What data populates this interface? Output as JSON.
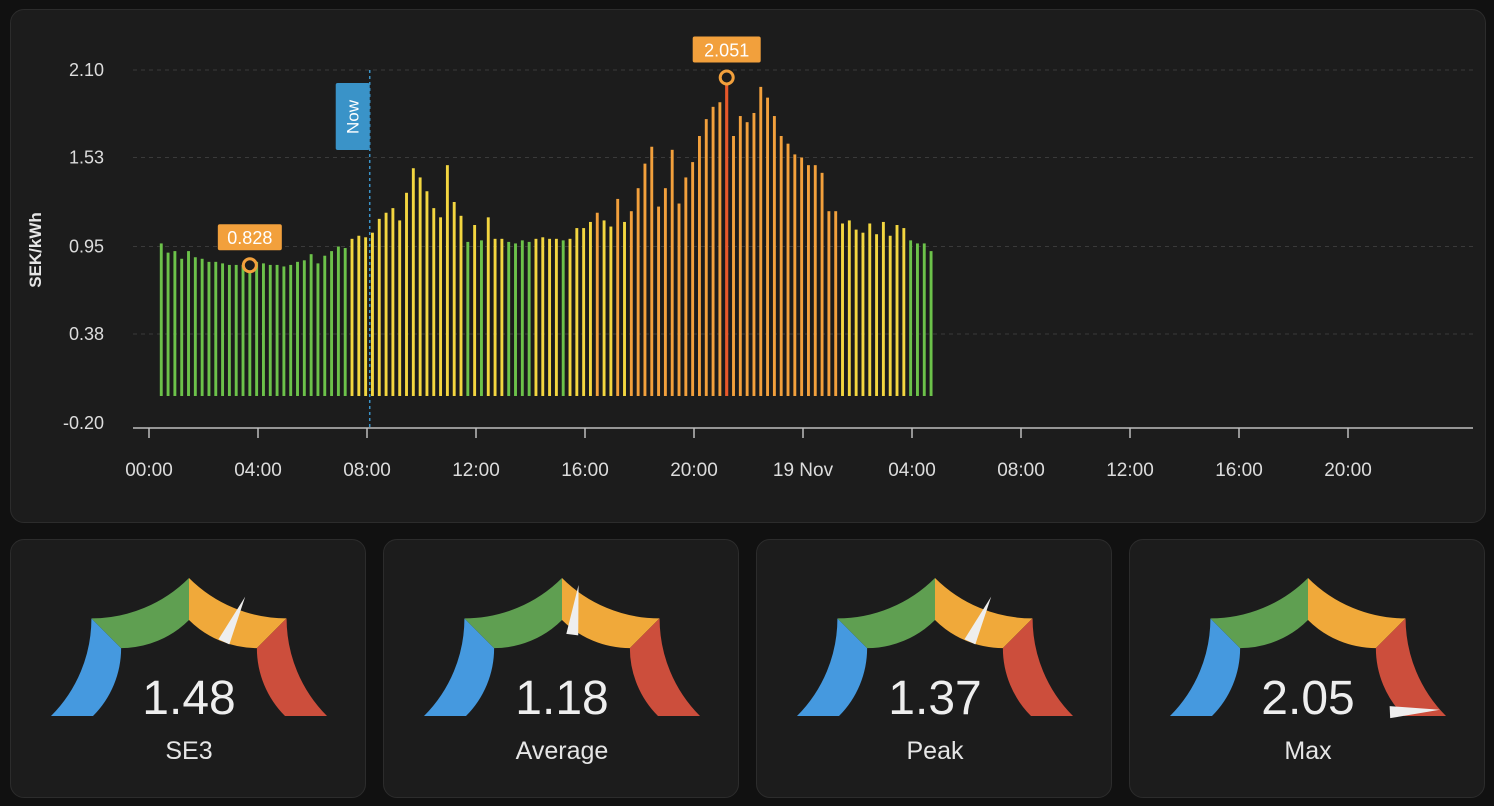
{
  "chart_data": {
    "type": "bar",
    "ylabel": "SEK/kWh",
    "y_ticks": [
      "2.10",
      "1.53",
      "0.95",
      "0.38",
      "-0.20"
    ],
    "ylim": [
      -0.2,
      2.1
    ],
    "x_ticks": [
      "00:00",
      "04:00",
      "08:00",
      "12:00",
      "16:00",
      "20:00",
      "19 Nov",
      "04:00",
      "08:00",
      "12:00",
      "16:00",
      "20:00"
    ],
    "x_range_hours": [
      0,
      48
    ],
    "grid": "horizontal-dashed",
    "interval_minutes": 15,
    "values": [
      0.97,
      0.91,
      0.92,
      0.87,
      0.92,
      0.88,
      0.87,
      0.85,
      0.85,
      0.84,
      0.83,
      0.83,
      0.83,
      0.828,
      0.85,
      0.84,
      0.83,
      0.83,
      0.82,
      0.83,
      0.85,
      0.86,
      0.9,
      0.84,
      0.89,
      0.92,
      0.95,
      0.94,
      1.0,
      1.02,
      1.01,
      1.04,
      1.13,
      1.17,
      1.2,
      1.12,
      1.3,
      1.46,
      1.4,
      1.31,
      1.2,
      1.14,
      1.48,
      1.24,
      1.15,
      0.98,
      1.09,
      0.99,
      1.14,
      1.0,
      1.0,
      0.98,
      0.97,
      0.99,
      0.98,
      1.0,
      1.01,
      1.0,
      1.0,
      0.99,
      1.0,
      1.07,
      1.07,
      1.11,
      1.17,
      1.12,
      1.08,
      1.26,
      1.11,
      1.18,
      1.33,
      1.49,
      1.6,
      1.21,
      1.33,
      1.58,
      1.23,
      1.4,
      1.5,
      1.67,
      1.78,
      1.86,
      1.89,
      2.051,
      1.67,
      1.8,
      1.76,
      1.82,
      1.99,
      1.92,
      1.8,
      1.67,
      1.62,
      1.55,
      1.53,
      1.48,
      1.48,
      1.43,
      1.18,
      1.18,
      1.1,
      1.12,
      1.06,
      1.04,
      1.1,
      1.03,
      1.11,
      1.02,
      1.09,
      1.07,
      0.99,
      0.97,
      0.97,
      0.92
    ],
    "bar_color_bands": {
      "green": "#6cc24a",
      "yellow": "#f3d640",
      "orange": "#f2a03c",
      "red": "#e8582a"
    },
    "annotations": {
      "now": {
        "label": "Now",
        "hour": 8.1
      },
      "min_marker": {
        "label": "0.828",
        "index": 13
      },
      "max_marker": {
        "label": "2.051",
        "index": 83
      }
    }
  },
  "gauges": [
    {
      "name": "SE3",
      "value": "1.48",
      "needle_fraction": 0.64
    },
    {
      "name": "Average",
      "value": "1.18",
      "needle_fraction": 0.54
    },
    {
      "name": "Peak",
      "value": "1.37",
      "needle_fraction": 0.64
    },
    {
      "name": "Max",
      "value": "2.05",
      "needle_fraction": 0.985
    }
  ],
  "gauge_segment_colors": [
    "#4599df",
    "#5f9f51",
    "#f0a93a",
    "#cc4e3c"
  ]
}
